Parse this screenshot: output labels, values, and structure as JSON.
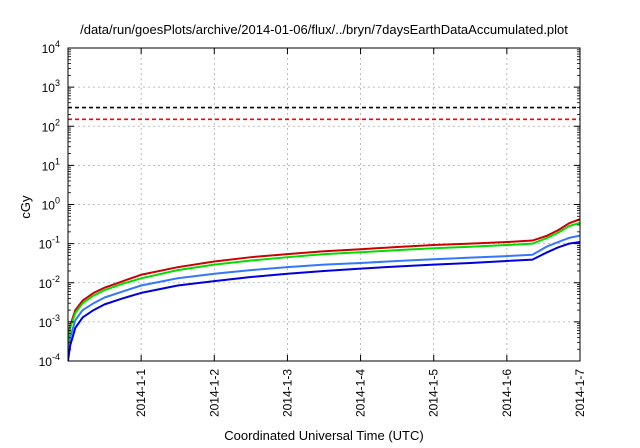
{
  "chart_data": {
    "type": "line",
    "title": "/data/run/goesPlots/archive/2014-01-06/flux/../bryn/7daysEarthDataAccumulated.plot",
    "xlabel": "Coordinated Universal Time (UTC)",
    "ylabel": "cGy",
    "y_scale": "log",
    "ylim": [
      0.0001,
      10000
    ],
    "xlim": [
      0,
      7
    ],
    "grid": true,
    "x_ticks": [
      {
        "x": 1,
        "label": "2014-1-1"
      },
      {
        "x": 2,
        "label": "2014-1-2"
      },
      {
        "x": 3,
        "label": "2014-1-3"
      },
      {
        "x": 4,
        "label": "2014-1-4"
      },
      {
        "x": 5,
        "label": "2014-1-5"
      },
      {
        "x": 6,
        "label": "2014-1-6"
      },
      {
        "x": 7,
        "label": "2014-1-7"
      }
    ],
    "y_ticks": [
      {
        "value": 0.0001,
        "base": "10",
        "exp": "-4"
      },
      {
        "value": 0.001,
        "base": "10",
        "exp": "-3"
      },
      {
        "value": 0.01,
        "base": "10",
        "exp": "-2"
      },
      {
        "value": 0.1,
        "base": "10",
        "exp": "-1"
      },
      {
        "value": 1,
        "base": "10",
        "exp": "0"
      },
      {
        "value": 10,
        "base": "10",
        "exp": "1"
      },
      {
        "value": 100,
        "base": "10",
        "exp": "2"
      },
      {
        "value": 1000,
        "base": "10",
        "exp": "3"
      },
      {
        "value": 10000,
        "base": "10",
        "exp": "4"
      }
    ],
    "thresholds": [
      {
        "value": 300,
        "color": "#000000"
      },
      {
        "value": 150,
        "color": "#ff0000"
      }
    ],
    "series": [
      {
        "color": "#cc0000",
        "x": [
          0,
          0.03,
          0.1,
          0.2,
          0.35,
          0.5,
          0.75,
          1,
          1.5,
          2,
          2.5,
          3,
          3.5,
          4,
          4.5,
          5,
          5.5,
          6,
          6.35,
          6.55,
          6.7,
          6.85,
          7
        ],
        "y": [
          0.0003,
          0.0008,
          0.002,
          0.0035,
          0.0055,
          0.0075,
          0.011,
          0.016,
          0.025,
          0.035,
          0.045,
          0.054,
          0.064,
          0.072,
          0.082,
          0.092,
          0.1,
          0.11,
          0.12,
          0.16,
          0.22,
          0.33,
          0.42
        ]
      },
      {
        "color": "#00dd00",
        "x": [
          0,
          0.03,
          0.1,
          0.2,
          0.35,
          0.5,
          0.75,
          1,
          1.5,
          2,
          2.5,
          3,
          3.5,
          4,
          4.5,
          5,
          5.5,
          6,
          6.35,
          6.55,
          6.7,
          6.85,
          7
        ],
        "y": [
          0.00025,
          0.0007,
          0.0017,
          0.003,
          0.0047,
          0.0065,
          0.0095,
          0.013,
          0.021,
          0.029,
          0.037,
          0.045,
          0.054,
          0.06,
          0.068,
          0.076,
          0.083,
          0.092,
          0.1,
          0.14,
          0.19,
          0.28,
          0.34
        ]
      },
      {
        "color": "#3377ff",
        "x": [
          0,
          0.03,
          0.1,
          0.2,
          0.35,
          0.5,
          0.75,
          1,
          1.5,
          2,
          2.5,
          3,
          3.5,
          4,
          4.5,
          5,
          5.5,
          6,
          6.35,
          6.55,
          6.7,
          6.85,
          7
        ],
        "y": [
          0.00015,
          0.0004,
          0.0011,
          0.002,
          0.003,
          0.0042,
          0.006,
          0.0085,
          0.013,
          0.017,
          0.021,
          0.025,
          0.029,
          0.032,
          0.036,
          0.04,
          0.044,
          0.048,
          0.052,
          0.085,
          0.11,
          0.14,
          0.16
        ]
      },
      {
        "color": "#0000dd",
        "x": [
          0,
          0.03,
          0.1,
          0.2,
          0.35,
          0.5,
          0.75,
          1,
          1.5,
          2,
          2.5,
          3,
          3.5,
          4,
          4.5,
          5,
          5.5,
          6,
          6.35,
          6.55,
          6.7,
          6.85,
          7
        ],
        "y": [
          0.0001,
          0.00025,
          0.0007,
          0.0013,
          0.002,
          0.0028,
          0.004,
          0.0055,
          0.0085,
          0.011,
          0.014,
          0.017,
          0.02,
          0.023,
          0.026,
          0.029,
          0.032,
          0.036,
          0.039,
          0.06,
          0.08,
          0.1,
          0.11
        ]
      }
    ]
  }
}
